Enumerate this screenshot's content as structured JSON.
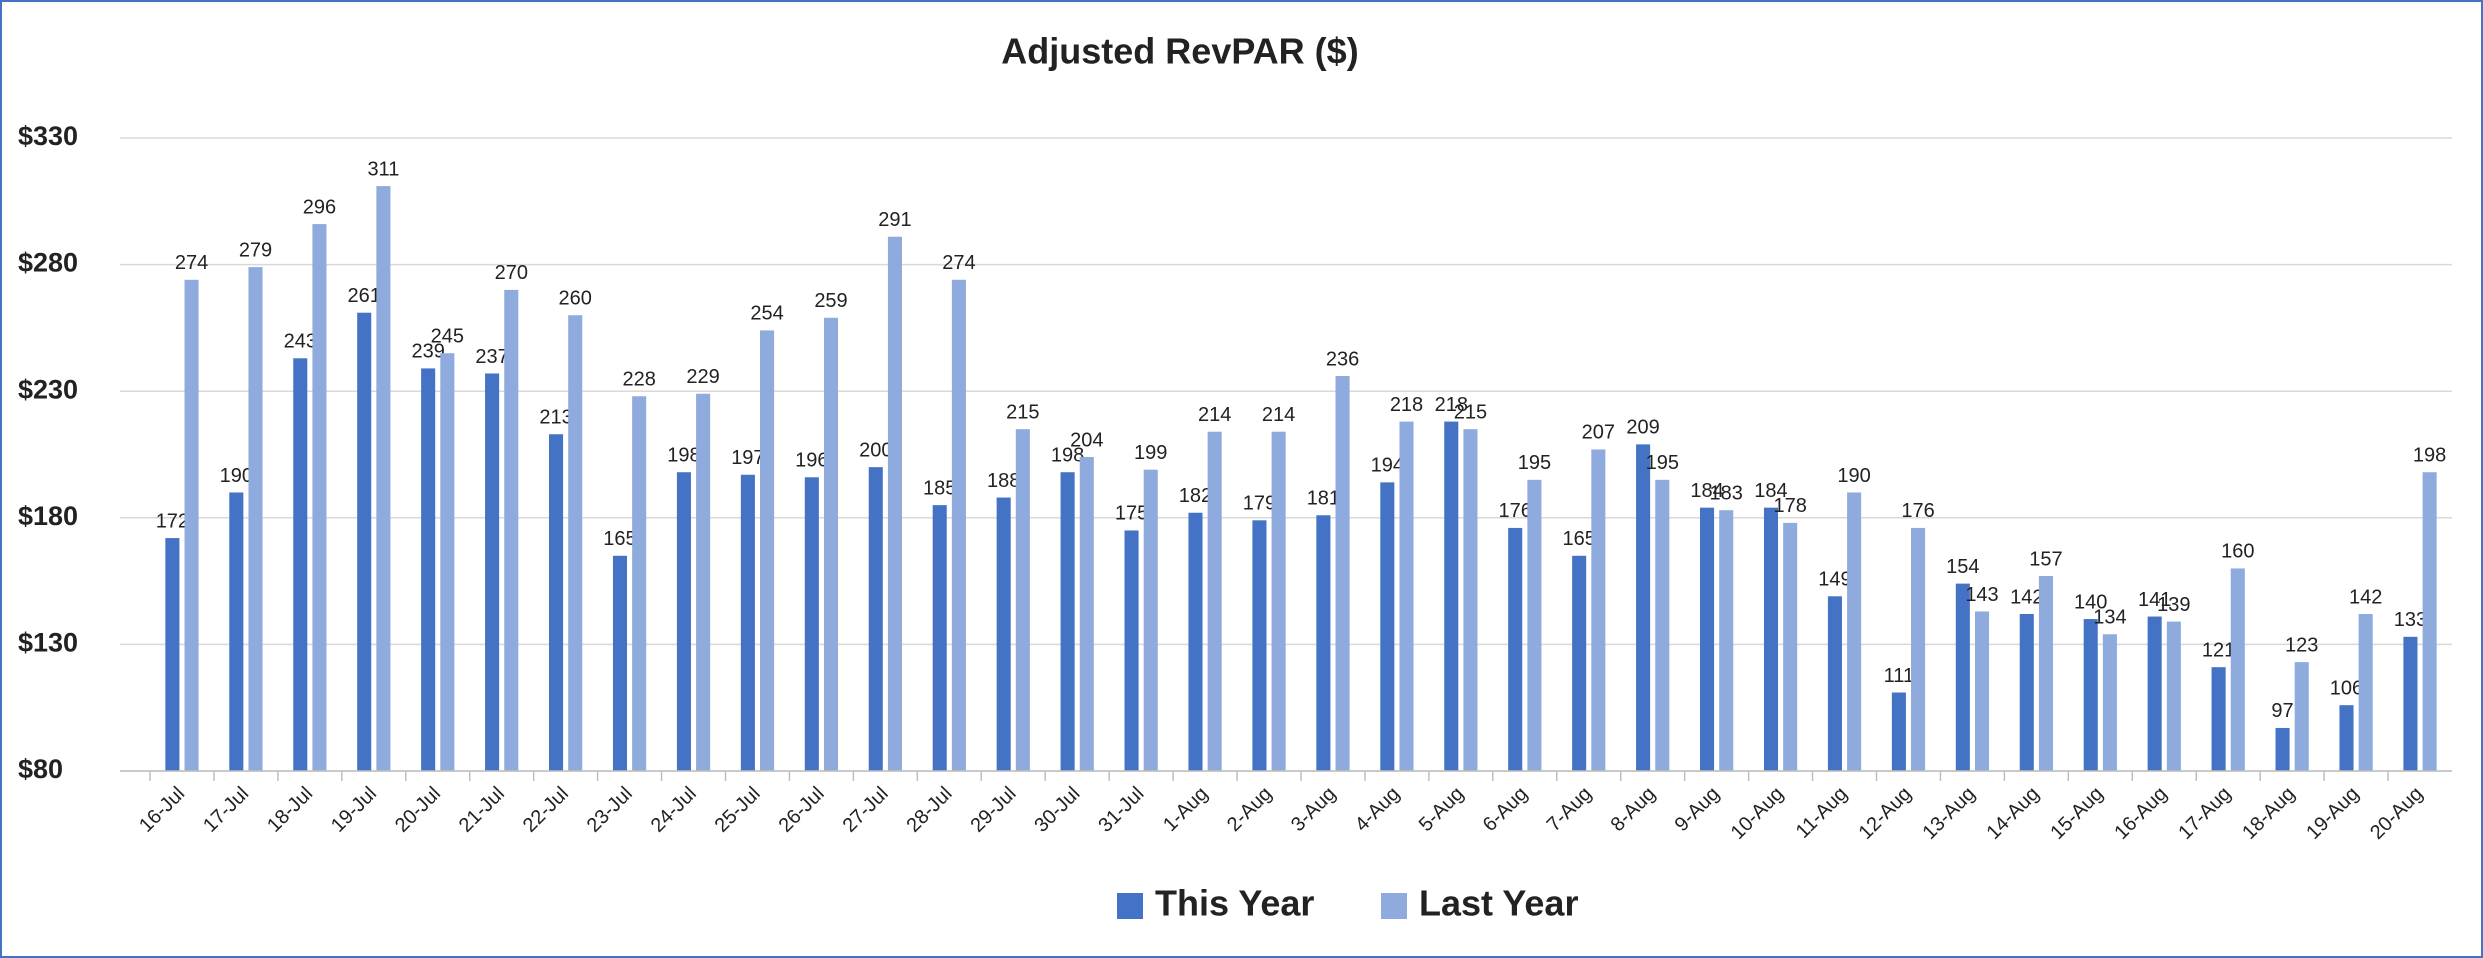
{
  "chart_data": {
    "type": "bar",
    "title": "Adjusted RevPAR ($)",
    "categories": [
      "16-Jul",
      "17-Jul",
      "18-Jul",
      "19-Jul",
      "20-Jul",
      "21-Jul",
      "22-Jul",
      "23-Jul",
      "24-Jul",
      "25-Jul",
      "26-Jul",
      "27-Jul",
      "28-Jul",
      "29-Jul",
      "30-Jul",
      "31-Jul",
      "1-Aug",
      "2-Aug",
      "3-Aug",
      "4-Aug",
      "5-Aug",
      "6-Aug",
      "7-Aug",
      "8-Aug",
      "9-Aug",
      "10-Aug",
      "11-Aug",
      "12-Aug",
      "13-Aug",
      "14-Aug",
      "15-Aug",
      "16-Aug",
      "17-Aug",
      "18-Aug",
      "19-Aug",
      "20-Aug"
    ],
    "series": [
      {
        "name": "This Year",
        "color": "#4472c4",
        "values": [
          172,
          190,
          243,
          261,
          239,
          237,
          213,
          165,
          198,
          197,
          196,
          200,
          185,
          188,
          198,
          175,
          182,
          179,
          181,
          194,
          218,
          176,
          165,
          209,
          184,
          184,
          149,
          111,
          154,
          142,
          140,
          141,
          121,
          97,
          106,
          133
        ]
      },
      {
        "name": "Last Year",
        "color": "#8faadc",
        "values": [
          274,
          279,
          296,
          311,
          245,
          270,
          260,
          228,
          229,
          254,
          259,
          291,
          274,
          215,
          204,
          199,
          214,
          214,
          236,
          218,
          215,
          195,
          207,
          195,
          183,
          178,
          190,
          176,
          143,
          157,
          134,
          139,
          160,
          123,
          142,
          198
        ]
      }
    ],
    "ylim": [
      80,
      330
    ],
    "yticks": [
      {
        "value": 80,
        "label": "$80"
      },
      {
        "value": 130,
        "label": "$130"
      },
      {
        "value": 180,
        "label": "$180"
      },
      {
        "value": 230,
        "label": "$230"
      },
      {
        "value": 280,
        "label": "$280"
      },
      {
        "value": 330,
        "label": "$330"
      }
    ],
    "grid": true,
    "legend": "bottom"
  }
}
